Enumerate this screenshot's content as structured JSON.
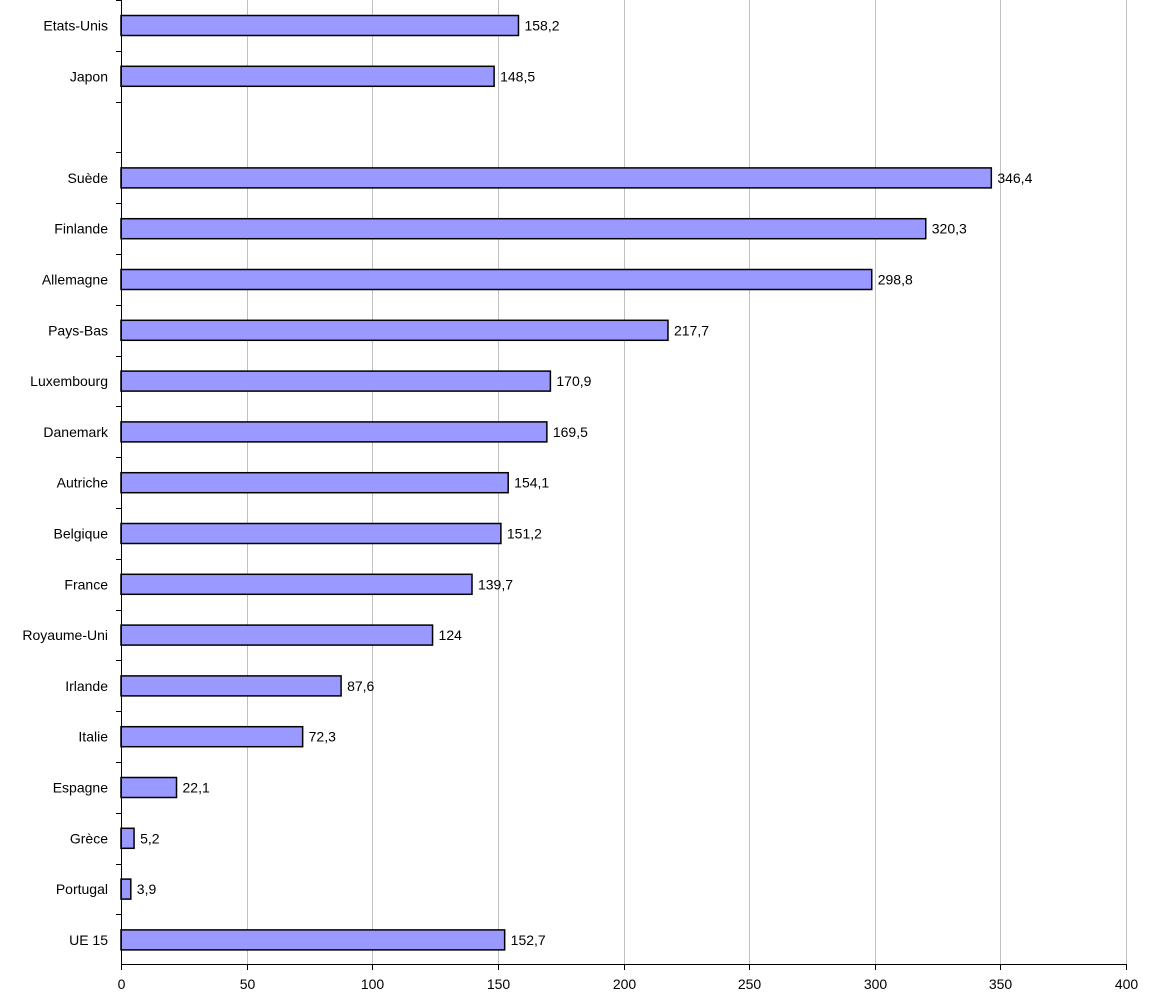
{
  "chart_data": {
    "type": "bar",
    "orientation": "horizontal",
    "categories": [
      "Etats-Unis",
      "Japon",
      "",
      "Suède",
      "Finlande",
      "Allemagne",
      "Pays-Bas",
      "Luxembourg",
      "Danemark",
      "Autriche",
      "Belgique",
      "France",
      "Royaume-Uni",
      "Irlande",
      "Italie",
      "Espagne",
      "Grèce",
      "Portugal",
      "UE 15"
    ],
    "values": [
      158.2,
      148.5,
      null,
      346.4,
      320.3,
      298.8,
      217.7,
      170.9,
      169.5,
      154.1,
      151.2,
      139.7,
      124,
      87.6,
      72.3,
      22.1,
      5.2,
      3.9,
      152.7
    ],
    "data_labels": [
      "158,2",
      "148,5",
      "",
      "346,4",
      "320,3",
      "298,8",
      "217,7",
      "170,9",
      "169,5",
      "154,1",
      "151,2",
      "139,7",
      "124",
      "87,6",
      "72,3",
      "22,1",
      "5,2",
      "3,9",
      "152,7"
    ],
    "xlim": [
      0,
      400
    ],
    "xticks": [
      0,
      50,
      100,
      150,
      200,
      250,
      300,
      350,
      400
    ],
    "xtick_labels": [
      "0",
      "50",
      "100",
      "150",
      "200",
      "250",
      "300",
      "350",
      "400"
    ],
    "title": "",
    "xlabel": "",
    "ylabel": "",
    "grid": "vertical",
    "legend": "none",
    "colors": {
      "bar_fill": "#9999ff",
      "bar_stroke": "#000000",
      "grid": "#c0c0c0",
      "axis": "#000000"
    }
  }
}
